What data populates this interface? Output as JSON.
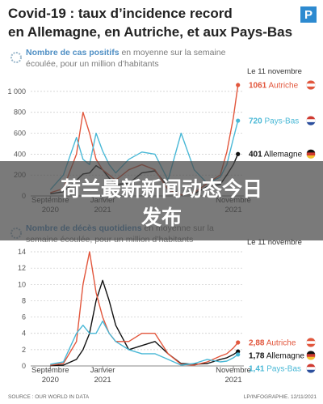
{
  "title": [
    "Covid-19 : taux d’incidence record",
    "en Allemagne, en Autriche, et aux Pays-Bas"
  ],
  "logo": "P",
  "source": "SOURCE : OUR WORLD IN DATA",
  "credit": "LP/INFOGRAPHIE. 12/11/2021",
  "banner": [
    "荷兰最新新闻动态今日",
    "发布"
  ],
  "chart_data": [
    {
      "type": "line",
      "subtitle": [
        "Nombre de cas positifs",
        "en moyenne sur la semaine",
        "écoulée, pour un million d’habitants"
      ],
      "annotation": "Le 11 novembre",
      "x": [
        0,
        1,
        2,
        2.5,
        3,
        3.5,
        4,
        4.5,
        5,
        6,
        7,
        8,
        9,
        10,
        11,
        12,
        13,
        13.5,
        14,
        14.35
      ],
      "xlim": [
        -1.5,
        14.8
      ],
      "xticks": [
        {
          "value": 0,
          "label": "Septembre 2020"
        },
        {
          "value": 4,
          "label": "Janvier 2021"
        },
        {
          "value": 14,
          "label": "Novembre 2021"
        }
      ],
      "ylim": [
        0,
        1100
      ],
      "yticks": [
        0,
        200,
        400,
        600,
        800,
        {
          "value": 1000,
          "label": "1 000"
        }
      ],
      "grid": true,
      "series": [
        {
          "name": "Allemagne",
          "color": "#111111",
          "values": [
            20,
            40,
            150,
            210,
            220,
            290,
            250,
            170,
            110,
            120,
            220,
            240,
            90,
            10,
            20,
            90,
            110,
            200,
            300,
            401
          ]
        },
        {
          "name": "Autriche",
          "color": "#e2563c",
          "values": [
            30,
            70,
            400,
            800,
            600,
            350,
            250,
            200,
            150,
            250,
            300,
            250,
            60,
            10,
            30,
            120,
            200,
            420,
            750,
            1061
          ]
        },
        {
          "name": "Pays-Bas",
          "color": "#49b8d6",
          "values": [
            60,
            200,
            560,
            350,
            300,
            600,
            430,
            300,
            220,
            350,
            420,
            400,
            150,
            600,
            250,
            120,
            180,
            300,
            550,
            720
          ]
        }
      ]
    },
    {
      "type": "line",
      "subtitle": [
        "Nombre de décès quotidiens",
        "en moyenne sur la",
        "semaine écoulée, pour un million d’habitants"
      ],
      "annotation": "Le 11 novembre",
      "x": [
        0,
        1,
        2,
        2.5,
        3,
        3.5,
        4,
        4.5,
        5,
        6,
        7,
        8,
        9,
        10,
        11,
        12,
        13,
        13.5,
        14,
        14.35
      ],
      "xlim": [
        -1.5,
        14.8
      ],
      "xticks": [
        {
          "value": 0,
          "label": "Septembre 2020"
        },
        {
          "value": 4,
          "label": "Janvier 2021"
        },
        {
          "value": 14,
          "label": "Novembre 2021"
        }
      ],
      "ylim": [
        0,
        14.5
      ],
      "yticks": [
        0,
        2,
        4,
        6,
        8,
        10,
        12,
        14
      ],
      "grid": true,
      "series": [
        {
          "name": "Allemagne",
          "color": "#111111",
          "values": [
            0.05,
            0.1,
            0.8,
            2,
            4,
            8,
            10.5,
            8,
            5,
            2,
            2.5,
            3,
            1.5,
            0.3,
            0.2,
            0.3,
            0.8,
            1,
            1.4,
            1.78
          ],
          "value_labels": [
            null,
            null,
            null,
            null,
            null,
            null,
            null,
            null,
            null,
            null,
            null,
            null,
            null,
            null,
            null,
            null,
            null,
            null,
            null,
            "1,78"
          ]
        },
        {
          "name": "Autriche",
          "color": "#e2563c",
          "values": [
            0.1,
            0.3,
            3,
            10,
            14,
            9,
            6,
            4,
            3,
            3,
            4,
            4,
            1.5,
            0.2,
            0.1,
            0.5,
            1.2,
            1.5,
            2.2,
            2.88
          ],
          "value_labels": [
            null,
            null,
            null,
            null,
            null,
            null,
            null,
            null,
            null,
            null,
            null,
            null,
            null,
            null,
            null,
            null,
            null,
            null,
            null,
            "2,88"
          ]
        },
        {
          "name": "Pays-Bas",
          "color": "#49b8d6",
          "values": [
            0.2,
            0.5,
            4,
            5,
            4,
            4,
            5.5,
            4,
            3,
            2,
            1.5,
            1.5,
            0.8,
            0.1,
            0.3,
            0.8,
            0.5,
            0.6,
            1,
            1.41
          ],
          "value_labels": [
            null,
            null,
            null,
            null,
            null,
            null,
            null,
            null,
            null,
            null,
            null,
            null,
            null,
            null,
            null,
            null,
            null,
            null,
            null,
            "1,41"
          ]
        }
      ]
    }
  ]
}
